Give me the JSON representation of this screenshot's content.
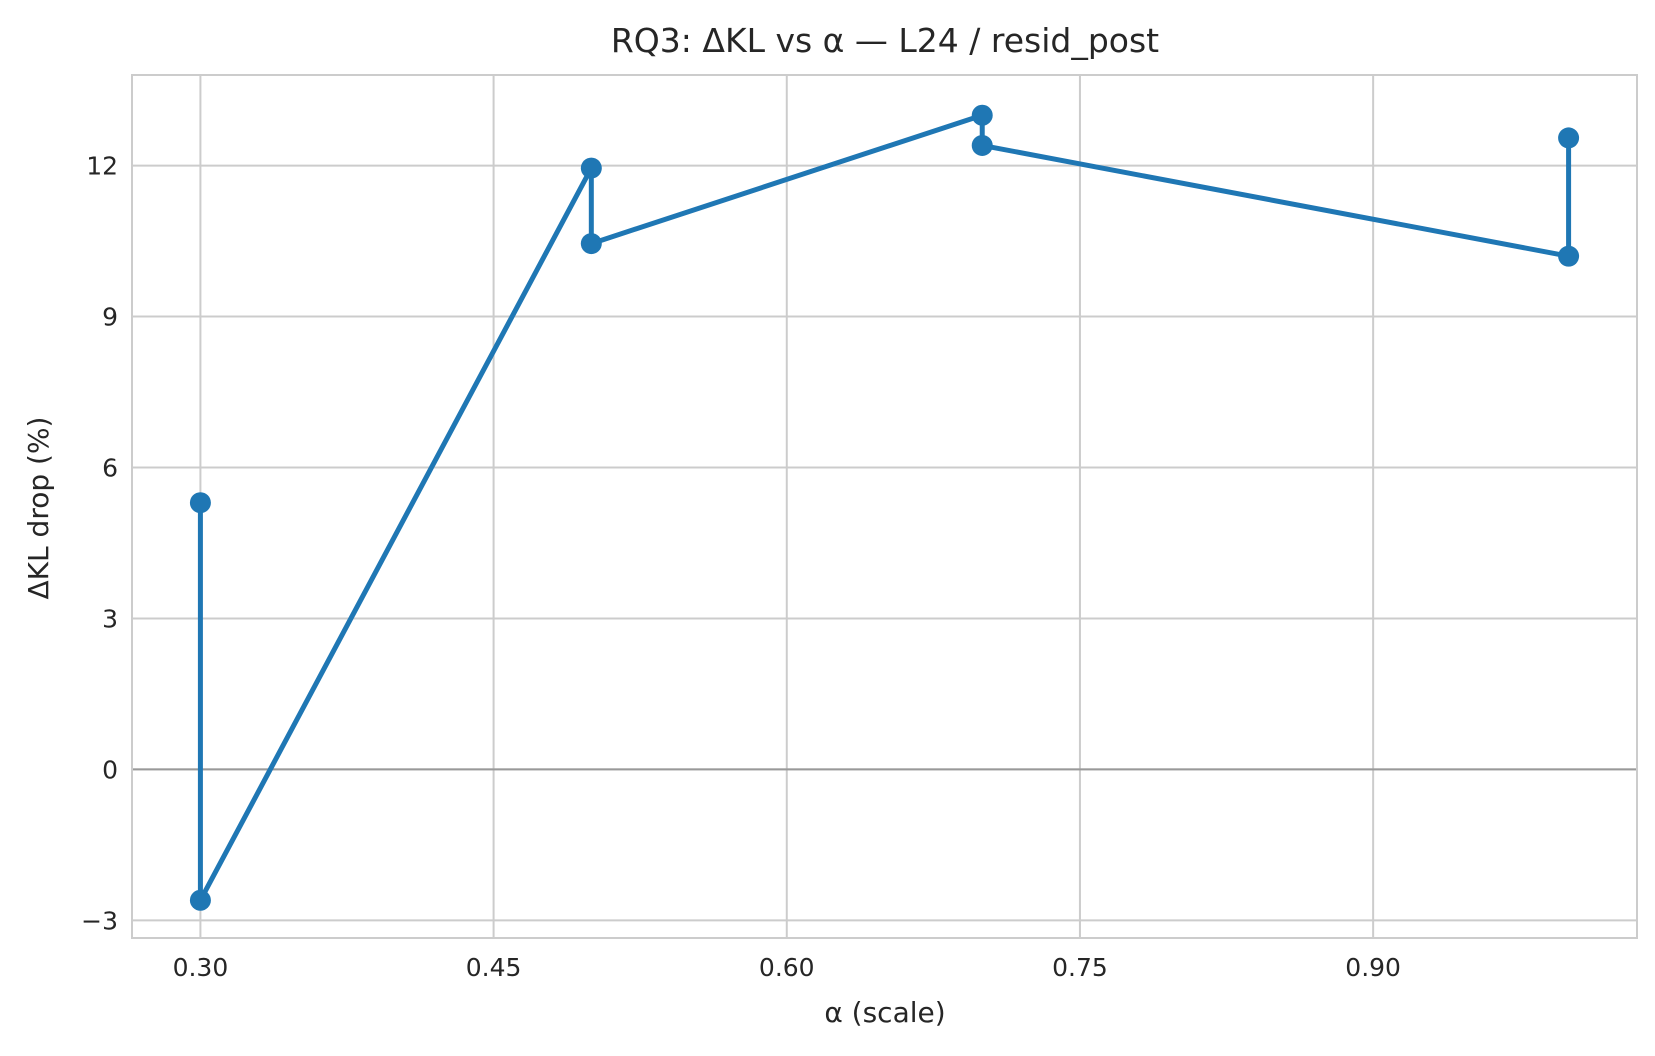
{
  "chart_data": {
    "type": "line",
    "title": "RQ3: ΔKL vs α — L24 / resid_post",
    "xlabel": "α (scale)",
    "ylabel": "ΔKL drop (%)",
    "xlim": [
      0.265,
      1.035
    ],
    "ylim": [
      -3.35,
      13.8
    ],
    "xticks": [
      0.3,
      0.45,
      0.6,
      0.75,
      0.9
    ],
    "xtick_labels": [
      "0.30",
      "0.45",
      "0.60",
      "0.75",
      "0.90"
    ],
    "yticks": [
      -3,
      0,
      3,
      6,
      9,
      12
    ],
    "ytick_labels": [
      "−3",
      "0",
      "3",
      "6",
      "9",
      "12"
    ],
    "grid": true,
    "reference_line_y": 0,
    "series": [
      {
        "color": "#1f77b4",
        "marker": "circle",
        "x": [
          0.3,
          0.3,
          0.5,
          0.5,
          0.7,
          0.7,
          1.0,
          1.0
        ],
        "y": [
          5.3,
          -2.6,
          11.95,
          10.45,
          13.0,
          12.4,
          10.2,
          12.55
        ]
      }
    ]
  }
}
